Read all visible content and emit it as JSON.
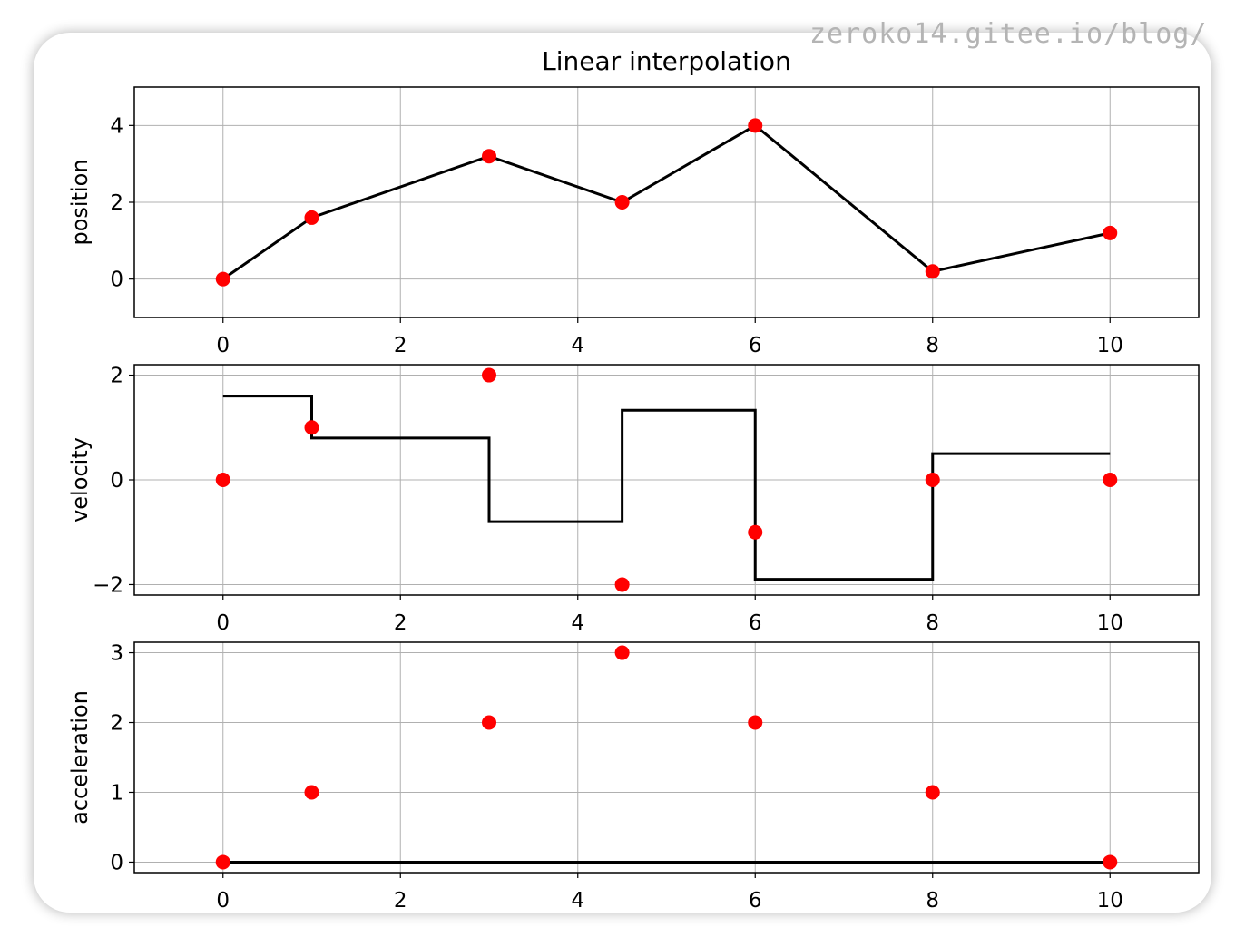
{
  "watermark": "zeroko14.gitee.io/blog/",
  "colors": {
    "line": "#000000",
    "points": "#ff0000",
    "grid": "#b0b0b0",
    "frame": "#000000",
    "text": "#000000"
  },
  "chart_data": [
    {
      "type": "line",
      "title": "Linear interpolation",
      "xlabel": "",
      "ylabel": "position",
      "xlim": [
        -1,
        11
      ],
      "ylim": [
        -1,
        5
      ],
      "xticks": [
        0,
        2,
        4,
        6,
        8,
        10
      ],
      "yticks": [
        0,
        2,
        4
      ],
      "grid": true,
      "line": {
        "name": "",
        "step": false,
        "x": [
          0,
          1,
          3,
          4.5,
          6,
          8,
          10
        ],
        "y": [
          0,
          1.6,
          3.2,
          2,
          4,
          0.2,
          1.2
        ]
      },
      "points": {
        "name": "",
        "x": [
          0,
          1,
          3,
          4.5,
          6,
          8,
          10
        ],
        "y": [
          0,
          1.6,
          3.2,
          2,
          4,
          0.2,
          1.2
        ]
      }
    },
    {
      "type": "line",
      "title": "",
      "xlabel": "",
      "ylabel": "velocity",
      "xlim": [
        -1,
        11
      ],
      "ylim": [
        -2.2,
        2.2
      ],
      "xticks": [
        0,
        2,
        4,
        6,
        8,
        10
      ],
      "yticks": [
        -2,
        0,
        2
      ],
      "grid": true,
      "line": {
        "name": "",
        "step": true,
        "x": [
          0,
          1,
          3,
          4.5,
          6,
          8,
          10
        ],
        "y": [
          1.6,
          0.8,
          -0.8,
          1.33,
          -1.9,
          0.5,
          0.5
        ]
      },
      "points": {
        "name": "",
        "x": [
          0,
          1,
          3,
          4.5,
          6,
          8,
          10
        ],
        "y": [
          0,
          1,
          2,
          -2,
          -1,
          0,
          0
        ]
      }
    },
    {
      "type": "line",
      "title": "",
      "xlabel": "",
      "ylabel": "acceleration",
      "xlim": [
        -1,
        11
      ],
      "ylim": [
        -0.15,
        3.15
      ],
      "xticks": [
        0,
        2,
        4,
        6,
        8,
        10
      ],
      "yticks": [
        0,
        1,
        2,
        3
      ],
      "grid": true,
      "line": {
        "name": "",
        "step": false,
        "x": [
          0,
          10
        ],
        "y": [
          0,
          0
        ]
      },
      "points": {
        "name": "",
        "x": [
          0,
          1,
          3,
          4.5,
          6,
          8,
          10
        ],
        "y": [
          0,
          1,
          2,
          3,
          2,
          1,
          0
        ]
      }
    }
  ]
}
